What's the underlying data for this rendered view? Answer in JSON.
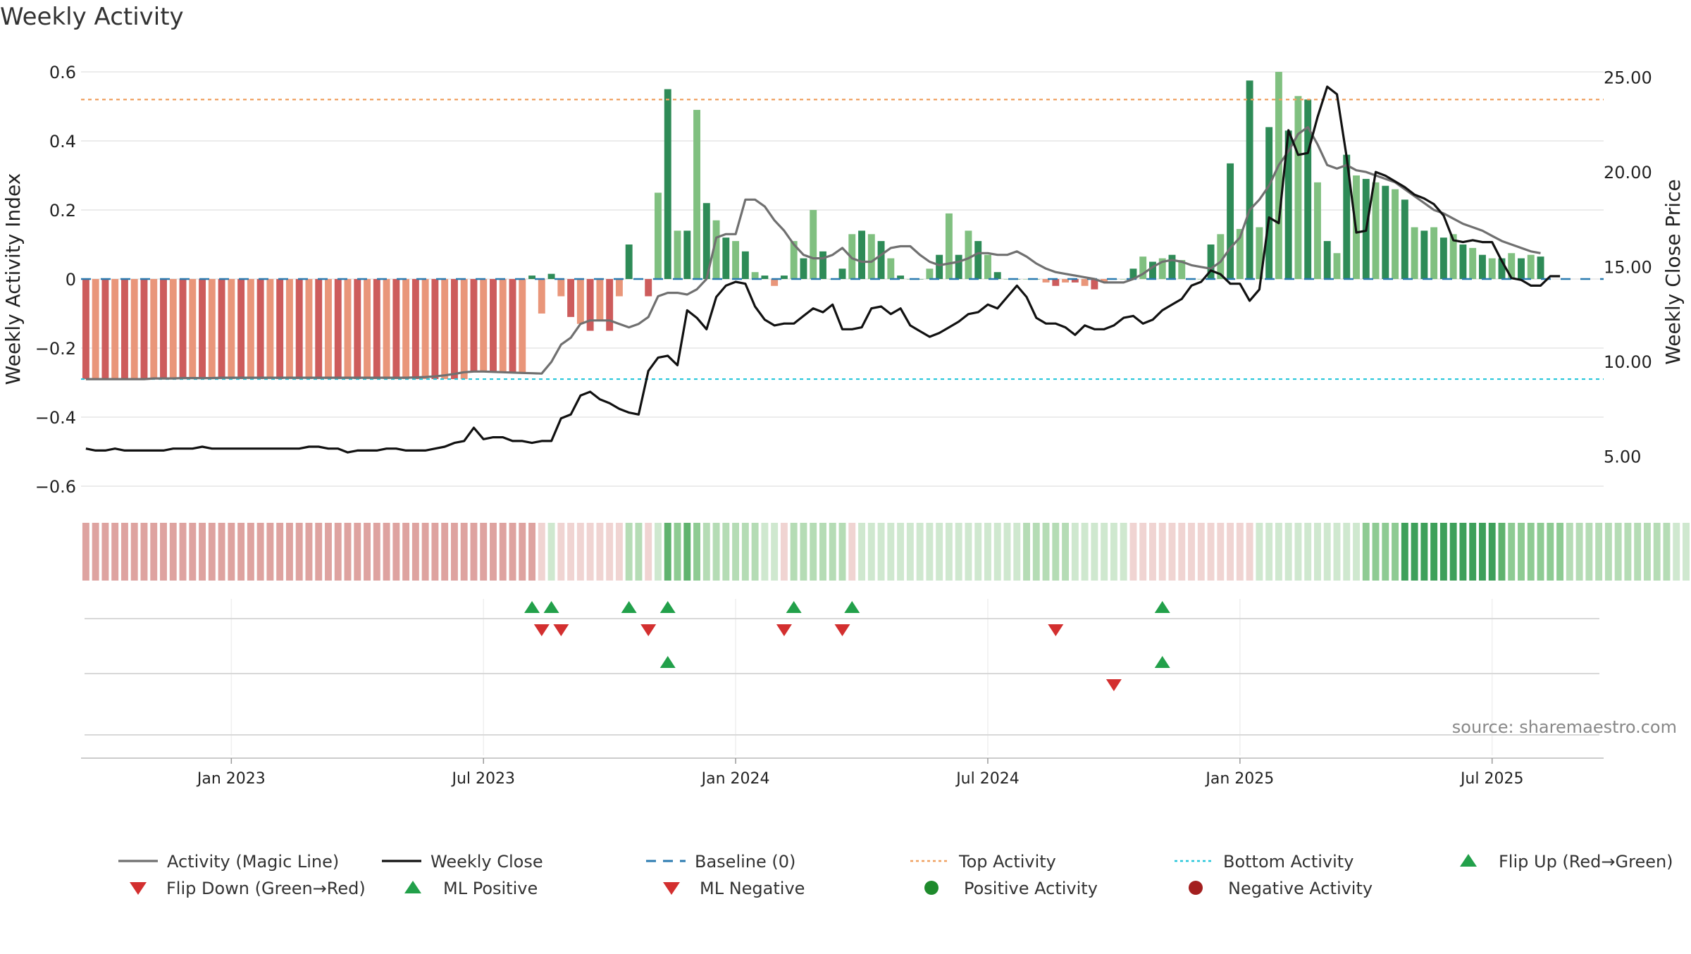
{
  "chart_data": {
    "type": "bar",
    "title": "Weekly Activity",
    "ylabel_left": "Weekly Activity Index",
    "ylabel_right": "Weekly Close Price",
    "y_left_ticks": [
      "0.6",
      "0.4",
      "0.2",
      "0",
      "−0.2",
      "−0.4",
      "−0.6"
    ],
    "y_left_tick_values": [
      0.6,
      0.4,
      0.2,
      0,
      -0.2,
      -0.4,
      -0.6
    ],
    "y_right_ticks": [
      "25.00",
      "20.00",
      "15.00",
      "10.00",
      "5.00"
    ],
    "y_right_tick_values": [
      25,
      20,
      15,
      10,
      5
    ],
    "ylim_left": [
      -0.645,
      0.645
    ],
    "ylim_right": [
      2.6,
      26.1
    ],
    "x_ticks": [
      "Jan 2023",
      "Jul 2023",
      "Jan 2024",
      "Jul 2024",
      "Jan 2025",
      "Jul 2025"
    ],
    "x_tick_weeks": [
      15,
      41,
      67,
      93,
      119,
      145
    ],
    "weeks": 157,
    "top_activity": 0.52,
    "bottom_activity": -0.29,
    "activity_series": [
      -0.29,
      -0.29,
      -0.29,
      -0.29,
      -0.29,
      -0.29,
      -0.29,
      -0.29,
      -0.29,
      -0.29,
      -0.29,
      -0.29,
      -0.29,
      -0.29,
      -0.29,
      -0.29,
      -0.29,
      -0.29,
      -0.29,
      -0.29,
      -0.29,
      -0.29,
      -0.29,
      -0.29,
      -0.29,
      -0.29,
      -0.29,
      -0.29,
      -0.29,
      -0.29,
      -0.29,
      -0.29,
      -0.29,
      -0.29,
      -0.29,
      -0.29,
      -0.29,
      -0.29,
      -0.29,
      -0.29,
      -0.27,
      -0.27,
      -0.27,
      -0.27,
      -0.27,
      -0.27,
      0.01,
      -0.1,
      0.015,
      -0.05,
      -0.11,
      -0.13,
      -0.15,
      -0.12,
      -0.15,
      -0.05,
      0.1,
      0.0,
      -0.05,
      0.25,
      0.55,
      0.14,
      0.14,
      0.49,
      0.22,
      0.17,
      0.12,
      0.11,
      0.08,
      0.02,
      0.01,
      -0.02,
      0.01,
      0.11,
      0.06,
      0.2,
      0.08,
      0.0,
      0.03,
      0.13,
      0.14,
      0.13,
      0.11,
      0.06,
      0.01,
      0.0,
      0.0,
      0.03,
      0.07,
      0.19,
      0.07,
      0.14,
      0.11,
      0.07,
      0.02,
      0.0,
      0.0,
      0.0,
      0.0,
      -0.01,
      -0.02,
      -0.01,
      -0.01,
      -0.02,
      -0.03,
      -0.01,
      0.0,
      0.0,
      0.03,
      0.065,
      0.05,
      0.06,
      0.07,
      0.055,
      0.0,
      0.0,
      0.1,
      0.13,
      0.335,
      0.145,
      0.575,
      0.15,
      0.44,
      0.6,
      0.43,
      0.53,
      0.52,
      0.28,
      0.11,
      0.075,
      0.36,
      0.3,
      0.29,
      0.28,
      0.27,
      0.26,
      0.23,
      0.15,
      0.14,
      0.15,
      0.12,
      0.13,
      0.1,
      0.09,
      0.07,
      0.06,
      0.06,
      0.075,
      0.06,
      0.07,
      0.065
    ],
    "magic_line": [
      -0.29,
      -0.29,
      -0.29,
      -0.29,
      -0.29,
      -0.29,
      -0.29,
      -0.288,
      -0.288,
      -0.288,
      -0.287,
      -0.287,
      -0.287,
      -0.287,
      -0.286,
      -0.286,
      -0.286,
      -0.286,
      -0.286,
      -0.286,
      -0.286,
      -0.286,
      -0.286,
      -0.286,
      -0.286,
      -0.286,
      -0.286,
      -0.286,
      -0.286,
      -0.286,
      -0.286,
      -0.286,
      -0.286,
      -0.286,
      -0.285,
      -0.284,
      -0.282,
      -0.279,
      -0.275,
      -0.27,
      -0.268,
      -0.268,
      -0.269,
      -0.27,
      -0.271,
      -0.272,
      -0.273,
      -0.274,
      -0.24,
      -0.19,
      -0.17,
      -0.13,
      -0.12,
      -0.12,
      -0.12,
      -0.13,
      -0.14,
      -0.13,
      -0.11,
      -0.05,
      -0.04,
      -0.04,
      -0.045,
      -0.03,
      0.0,
      0.12,
      0.13,
      0.13,
      0.23,
      0.23,
      0.21,
      0.17,
      0.14,
      0.1,
      0.07,
      0.06,
      0.06,
      0.07,
      0.09,
      0.06,
      0.05,
      0.05,
      0.07,
      0.09,
      0.095,
      0.095,
      0.07,
      0.05,
      0.04,
      0.045,
      0.05,
      0.06,
      0.075,
      0.075,
      0.07,
      0.07,
      0.08,
      0.065,
      0.045,
      0.03,
      0.02,
      0.015,
      0.01,
      0.005,
      0.0,
      -0.01,
      -0.01,
      -0.01,
      0.0,
      0.015,
      0.035,
      0.05,
      0.055,
      0.05,
      0.04,
      0.035,
      0.03,
      0.05,
      0.09,
      0.12,
      0.2,
      0.23,
      0.27,
      0.33,
      0.37,
      0.42,
      0.44,
      0.39,
      0.33,
      0.32,
      0.33,
      0.315,
      0.31,
      0.3,
      0.29,
      0.28,
      0.26,
      0.24,
      0.22,
      0.2,
      0.19,
      0.175,
      0.16,
      0.15,
      0.14,
      0.125,
      0.11,
      0.1,
      0.09,
      0.08,
      0.075
    ],
    "weekly_close": [
      5.4,
      5.3,
      5.3,
      5.4,
      5.3,
      5.3,
      5.3,
      5.3,
      5.3,
      5.4,
      5.4,
      5.4,
      5.5,
      5.4,
      5.4,
      5.4,
      5.4,
      5.4,
      5.4,
      5.4,
      5.4,
      5.4,
      5.4,
      5.5,
      5.5,
      5.4,
      5.4,
      5.2,
      5.3,
      5.3,
      5.3,
      5.4,
      5.4,
      5.3,
      5.3,
      5.3,
      5.4,
      5.5,
      5.7,
      5.8,
      6.5,
      5.9,
      6.0,
      6.0,
      5.8,
      5.8,
      5.7,
      5.8,
      5.8,
      7.0,
      7.2,
      8.2,
      8.4,
      8.0,
      7.8,
      7.5,
      7.3,
      7.2,
      9.5,
      10.2,
      10.3,
      9.8,
      12.7,
      12.3,
      11.7,
      13.4,
      14.0,
      14.2,
      14.1,
      12.9,
      12.2,
      11.9,
      12.0,
      12.0,
      12.4,
      12.8,
      12.6,
      13.0,
      11.7,
      11.7,
      11.8,
      12.8,
      12.9,
      12.5,
      12.8,
      11.9,
      11.6,
      11.3,
      11.5,
      11.8,
      12.1,
      12.5,
      12.6,
      13.0,
      12.8,
      13.4,
      14.0,
      13.4,
      12.3,
      12.0,
      12.0,
      11.8,
      11.4,
      11.9,
      11.7,
      11.7,
      11.9,
      12.3,
      12.4,
      12.0,
      12.2,
      12.7,
      13.0,
      13.3,
      14.0,
      14.2,
      14.8,
      14.6,
      14.1,
      14.1,
      13.2,
      13.8,
      17.6,
      17.3,
      22.2,
      20.9,
      21.0,
      22.9,
      24.5,
      24.1,
      20.8,
      16.8,
      16.9,
      20.0,
      19.8,
      19.5,
      19.2,
      18.8,
      18.6,
      18.3,
      17.7,
      16.4,
      16.3,
      16.4,
      16.3,
      16.3,
      15.3,
      14.4,
      14.3,
      14.0,
      14.0,
      14.5,
      14.5
    ],
    "heat_strip": [
      -2,
      -2,
      -2,
      -2,
      -2,
      -2,
      -2,
      -2,
      -2,
      -2,
      -2,
      -2,
      -2,
      -2,
      -2,
      -2,
      -2,
      -2,
      -2,
      -2,
      -2,
      -2,
      -2,
      -2,
      -2,
      -2,
      -2,
      -2,
      -2,
      -2,
      -2,
      -2,
      -2,
      -2,
      -2,
      -2,
      -2,
      -2,
      -2,
      -2,
      -2,
      -2,
      -2,
      -2,
      -2,
      -2,
      -2,
      -1,
      1,
      -1,
      -1,
      -1,
      -1,
      -1,
      -1,
      -1,
      2,
      2,
      -1,
      1,
      4,
      3,
      4,
      3,
      2,
      2,
      2,
      2,
      2,
      2,
      1,
      1,
      -1,
      2,
      2,
      2,
      2,
      2,
      2,
      -1,
      1,
      1,
      1,
      1,
      1,
      1,
      1,
      1,
      1,
      1,
      1,
      1,
      1,
      1,
      1,
      1,
      1,
      2,
      2,
      2,
      2,
      2,
      1,
      1,
      1,
      1,
      1,
      1,
      -1,
      -1,
      -1,
      -1,
      -1,
      -1,
      -1,
      -1,
      -1,
      -1,
      -1,
      -1,
      -1,
      1,
      1,
      1,
      1,
      1,
      1,
      1,
      1,
      1,
      1,
      1,
      3,
      3,
      3,
      3,
      5,
      5,
      5,
      5,
      5,
      5,
      5,
      5,
      5,
      5,
      4,
      3,
      3,
      3,
      3,
      3,
      3,
      2,
      2,
      2,
      2,
      2,
      2,
      2,
      2,
      2,
      2,
      2,
      1,
      1,
      1
    ],
    "marker_rows": [
      {
        "up_weeks": [
          46,
          48,
          56,
          60,
          73,
          79,
          111
        ],
        "down_weeks": [
          47,
          49,
          58,
          72,
          78,
          100
        ]
      },
      {
        "up_weeks": [
          60,
          111
        ],
        "down_weeks": [
          106
        ]
      },
      {
        "up_weeks": [],
        "down_weeks": []
      }
    ],
    "annotation": "source: sharemaestro.com",
    "legend": [
      {
        "label": "Activity (Magic Line)",
        "style": "solid-line",
        "color": "#707070"
      },
      {
        "label": "Weekly Close",
        "style": "solid-line",
        "color": "#111111"
      },
      {
        "label": "Baseline (0)",
        "style": "dashed-line",
        "color": "#2a7ab0"
      },
      {
        "label": "Top Activity",
        "style": "dotted-line",
        "color": "#f0a060"
      },
      {
        "label": "Bottom Activity",
        "style": "dotted-line",
        "color": "#26c6da"
      },
      {
        "label": "Flip Up (Red→Green)",
        "style": "triangle-up",
        "color": "#22a04a"
      },
      {
        "label": "Flip Down (Green→Red)",
        "style": "triangle-down",
        "color": "#d32f2f"
      },
      {
        "label": "ML Positive",
        "style": "triangle-up",
        "color": "#22a04a"
      },
      {
        "label": "ML Negative",
        "style": "triangle-down",
        "color": "#d32f2f"
      },
      {
        "label": "Positive Activity",
        "style": "dot",
        "color": "#1e8a2c"
      },
      {
        "label": "Negative Activity",
        "style": "dot",
        "color": "#a31f1f"
      }
    ],
    "colors": {
      "pos_dark": "#2e8b57",
      "pos_light": "#80c080",
      "neg_dark": "#cd5c5c",
      "neg_light": "#e9967a",
      "grid": "#e6e6e6",
      "axis": "#d0d0d0"
    }
  }
}
